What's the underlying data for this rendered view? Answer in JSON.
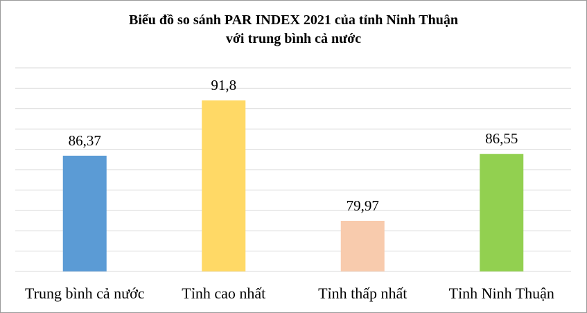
{
  "chart_data": {
    "type": "bar",
    "title_lines": [
      "Biểu đồ so sánh PAR INDEX 2021 của tỉnh Ninh Thuận",
      "với trung bình cả nước"
    ],
    "categories": [
      "Trung bình cả nước",
      "Tỉnh cao nhất",
      "Tỉnh thấp nhất",
      "Tỉnh Ninh Thuận"
    ],
    "values": [
      86.37,
      91.8,
      79.97,
      86.55
    ],
    "value_labels": [
      "86,37",
      "91,8",
      "79,97",
      "86,55"
    ],
    "colors": [
      "#5b9bd5",
      "#ffd966",
      "#f8cbad",
      "#92d050"
    ],
    "ylim": [
      75,
      95
    ],
    "grid": true,
    "legend": "none",
    "xlabel": "",
    "ylabel": ""
  }
}
